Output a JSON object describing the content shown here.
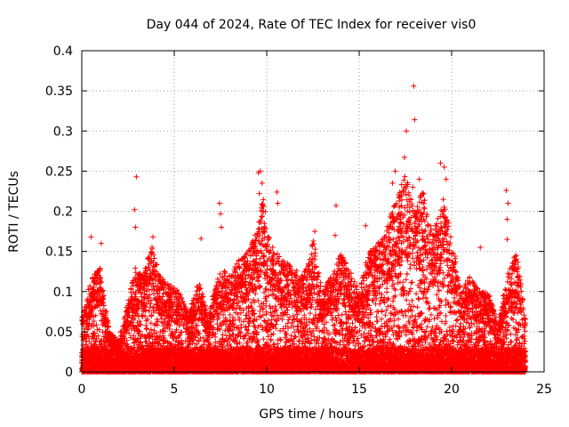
{
  "chart_data": {
    "type": "scatter",
    "title": "Day 044 of 2024, Rate Of TEC Index for receiver vis0",
    "xlabel": "GPS time / hours",
    "ylabel": "ROTI / TECUs",
    "xlim": [
      0,
      25
    ],
    "ylim": [
      0,
      0.4
    ],
    "x_ticks": [
      0,
      5,
      10,
      15,
      20,
      25
    ],
    "y_ticks": [
      0,
      0.05,
      0.1,
      0.15,
      0.2,
      0.25,
      0.3,
      0.35,
      0.4
    ],
    "x_tick_labels": [
      "0",
      "5",
      "10",
      "15",
      "20",
      "25"
    ],
    "y_tick_labels": [
      "0",
      "0.05",
      "0.1",
      "0.15",
      "0.2",
      "0.25",
      "0.3",
      "0.35",
      "0.4"
    ],
    "grid": true,
    "marker": "+",
    "color": "#ff0000",
    "series": [
      {
        "name": "ROTI",
        "envelope": {
          "x": [
            0,
            0.3,
            0.6,
            1.0,
            1.5,
            2.0,
            2.5,
            2.9,
            3.3,
            3.8,
            4.2,
            4.8,
            5.3,
            5.8,
            6.3,
            6.8,
            7.5,
            8.0,
            8.5,
            9.0,
            9.5,
            9.8,
            10.2,
            10.8,
            11.5,
            12.0,
            12.5,
            13.0,
            13.5,
            14.0,
            14.5,
            15.0,
            15.5,
            16.0,
            16.5,
            17.0,
            17.5,
            18.0,
            18.5,
            19.0,
            19.5,
            20.0,
            20.5,
            21.0,
            21.5,
            22.0,
            22.5,
            23.0,
            23.5,
            24.0
          ],
          "upper": [
            0.07,
            0.1,
            0.12,
            0.13,
            0.05,
            0.04,
            0.09,
            0.13,
            0.12,
            0.16,
            0.12,
            0.11,
            0.1,
            0.07,
            0.12,
            0.07,
            0.13,
            0.12,
            0.14,
            0.15,
            0.18,
            0.22,
            0.16,
            0.14,
            0.13,
            0.12,
            0.17,
            0.1,
            0.12,
            0.15,
            0.13,
            0.1,
            0.15,
            0.16,
            0.18,
            0.22,
            0.25,
            0.2,
            0.23,
            0.17,
            0.22,
            0.17,
            0.1,
            0.12,
            0.1,
            0.1,
            0.06,
            0.12,
            0.15,
            0.07
          ]
        },
        "outliers": [
          {
            "x": 0.5,
            "y": 0.168
          },
          {
            "x": 1.05,
            "y": 0.16
          },
          {
            "x": 2.95,
            "y": 0.243
          },
          {
            "x": 2.85,
            "y": 0.202
          },
          {
            "x": 2.9,
            "y": 0.18
          },
          {
            "x": 3.85,
            "y": 0.168
          },
          {
            "x": 6.45,
            "y": 0.166
          },
          {
            "x": 7.45,
            "y": 0.21
          },
          {
            "x": 7.5,
            "y": 0.197
          },
          {
            "x": 7.55,
            "y": 0.18
          },
          {
            "x": 9.55,
            "y": 0.248
          },
          {
            "x": 9.65,
            "y": 0.25
          },
          {
            "x": 9.75,
            "y": 0.235
          },
          {
            "x": 9.6,
            "y": 0.222
          },
          {
            "x": 9.8,
            "y": 0.2
          },
          {
            "x": 10.55,
            "y": 0.224
          },
          {
            "x": 10.6,
            "y": 0.21
          },
          {
            "x": 12.6,
            "y": 0.175
          },
          {
            "x": 13.75,
            "y": 0.207
          },
          {
            "x": 13.7,
            "y": 0.17
          },
          {
            "x": 15.35,
            "y": 0.182
          },
          {
            "x": 16.8,
            "y": 0.235
          },
          {
            "x": 16.95,
            "y": 0.25
          },
          {
            "x": 17.45,
            "y": 0.267
          },
          {
            "x": 17.55,
            "y": 0.3
          },
          {
            "x": 17.9,
            "y": 0.23
          },
          {
            "x": 18.0,
            "y": 0.314
          },
          {
            "x": 17.95,
            "y": 0.356
          },
          {
            "x": 18.25,
            "y": 0.24
          },
          {
            "x": 18.5,
            "y": 0.21
          },
          {
            "x": 19.4,
            "y": 0.26
          },
          {
            "x": 19.6,
            "y": 0.255
          },
          {
            "x": 19.7,
            "y": 0.24
          },
          {
            "x": 21.55,
            "y": 0.155
          },
          {
            "x": 22.95,
            "y": 0.226
          },
          {
            "x": 23.05,
            "y": 0.21
          },
          {
            "x": 23.0,
            "y": 0.19
          },
          {
            "x": 23.0,
            "y": 0.165
          }
        ]
      }
    ]
  }
}
